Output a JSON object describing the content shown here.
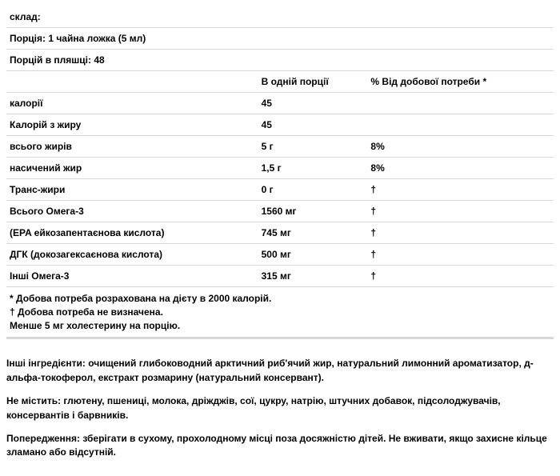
{
  "header": {
    "sklad": "склад:",
    "portion": "Порція: 1 чайна ложка (5 мл)",
    "portions_in_bottle": "Порцій в пляшці: 48"
  },
  "columns": {
    "per_serving": "В одній порції",
    "daily_value": "% Від добової потреби *"
  },
  "rows": [
    {
      "label": "калорії",
      "amount": "45",
      "dv": ""
    },
    {
      "label": "Калорій з жиру",
      "amount": "45",
      "dv": ""
    },
    {
      "label": "всього жирів",
      "amount": "5 г",
      "dv": "8%"
    },
    {
      "label": "насичений жир",
      "amount": "1,5 г",
      "dv": "8%"
    },
    {
      "label": "Транс-жири",
      "amount": "0 г",
      "dv": "†"
    },
    {
      "label": "Всього Омега-3",
      "amount": "1560 мг",
      "dv": "†"
    },
    {
      "label": "(EPA ейкозапентаєнова кислота)",
      "amount": "745 мг",
      "dv": "†"
    },
    {
      "label": "ДГК (докозагексаєнова кислота)",
      "amount": "500 мг",
      "dv": "†"
    },
    {
      "label": "Інші Омега-3",
      "amount": "315 мг",
      "dv": "†"
    }
  ],
  "footnotes": {
    "l1": "* Добова потреба розрахована на дієту в 2000 калорій.",
    "l2": "† Добова потреба не визначена.",
    "l3": "Менше 5 мг холестерину на порцію."
  },
  "body": {
    "p1": "Інші інгредієнти: очищений глибоководний арктичний риб'ячий жир, натуральний лимонний ароматизатор, д-альфа-токоферол, екстракт розмарину (натуральний консервант).",
    "p2": "Не містить: глютену, пшениці, молока, дріжджів, сої, цукру, натрію, штучних добавок, підсолоджувачів, консервантів і барвників.",
    "p3": "Попередження: зберігати в сухому, прохолодному місці поза досяжністю дітей. Не вживати, якщо захисне кільце зламано або відсутній."
  }
}
